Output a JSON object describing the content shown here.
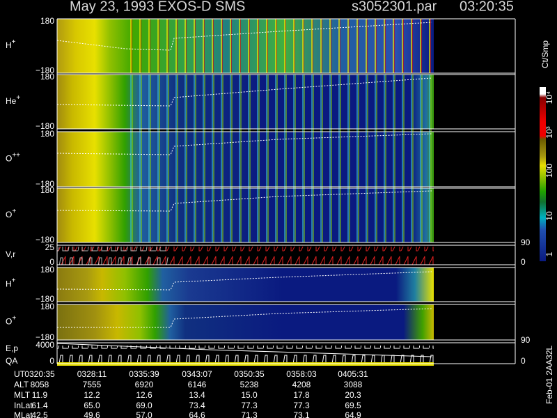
{
  "header": {
    "title": "May 23, 1993   EXOS-D SMS",
    "file": "s3052301.par",
    "time": "03:20:35"
  },
  "panels": [
    {
      "label": "H",
      "sup": "+",
      "top": "180",
      "bottom": "−180"
    },
    {
      "label": "He",
      "sup": "+",
      "top": "180",
      "bottom": "−180"
    },
    {
      "label": "O",
      "sup": "++",
      "top": "180",
      "bottom": "−180"
    },
    {
      "label": "O",
      "sup": "+",
      "top": "180",
      "bottom": "−180"
    },
    {
      "label": "V,r",
      "top": "25",
      "bottom": "0",
      "right_top": "90",
      "right_bottom": "0"
    },
    {
      "label": "H",
      "sup": "+",
      "top": "180",
      "bottom": "−180"
    },
    {
      "label": "O",
      "sup": "+",
      "top": "180",
      "bottom": "−180"
    },
    {
      "label": "E,p",
      "label2": "QA",
      "top": "4000",
      "bottom": "0",
      "right_top": "90",
      "right_bottom": "0"
    }
  ],
  "colorbar": {
    "unit": "Ct/Smp",
    "ticks": [
      "10⁴",
      "10³",
      "100",
      "10",
      "1"
    ]
  },
  "table": {
    "rows": [
      [
        "UT",
        "0320:35",
        "0328:11",
        "0335:39",
        "0343:07",
        "0350:35",
        "0358:03",
        "0405:31"
      ],
      [
        "ALT",
        "8058",
        "7555",
        "6920",
        "6146",
        "5238",
        "4208",
        "3088"
      ],
      [
        "MLT",
        "11.9",
        "12.2",
        "12.6",
        "13.4",
        "15.0",
        "17.8",
        "20.3"
      ],
      [
        "InLat",
        "61.4",
        "65.0",
        "69.0",
        "73.4",
        "77.3",
        "77.3",
        "69.5"
      ],
      [
        "MLat",
        "42.5",
        "49.6",
        "57.0",
        "64.6",
        "71.3",
        "73.1",
        "64.9"
      ]
    ]
  },
  "stamp": "Feb-01 2AA32L"
}
